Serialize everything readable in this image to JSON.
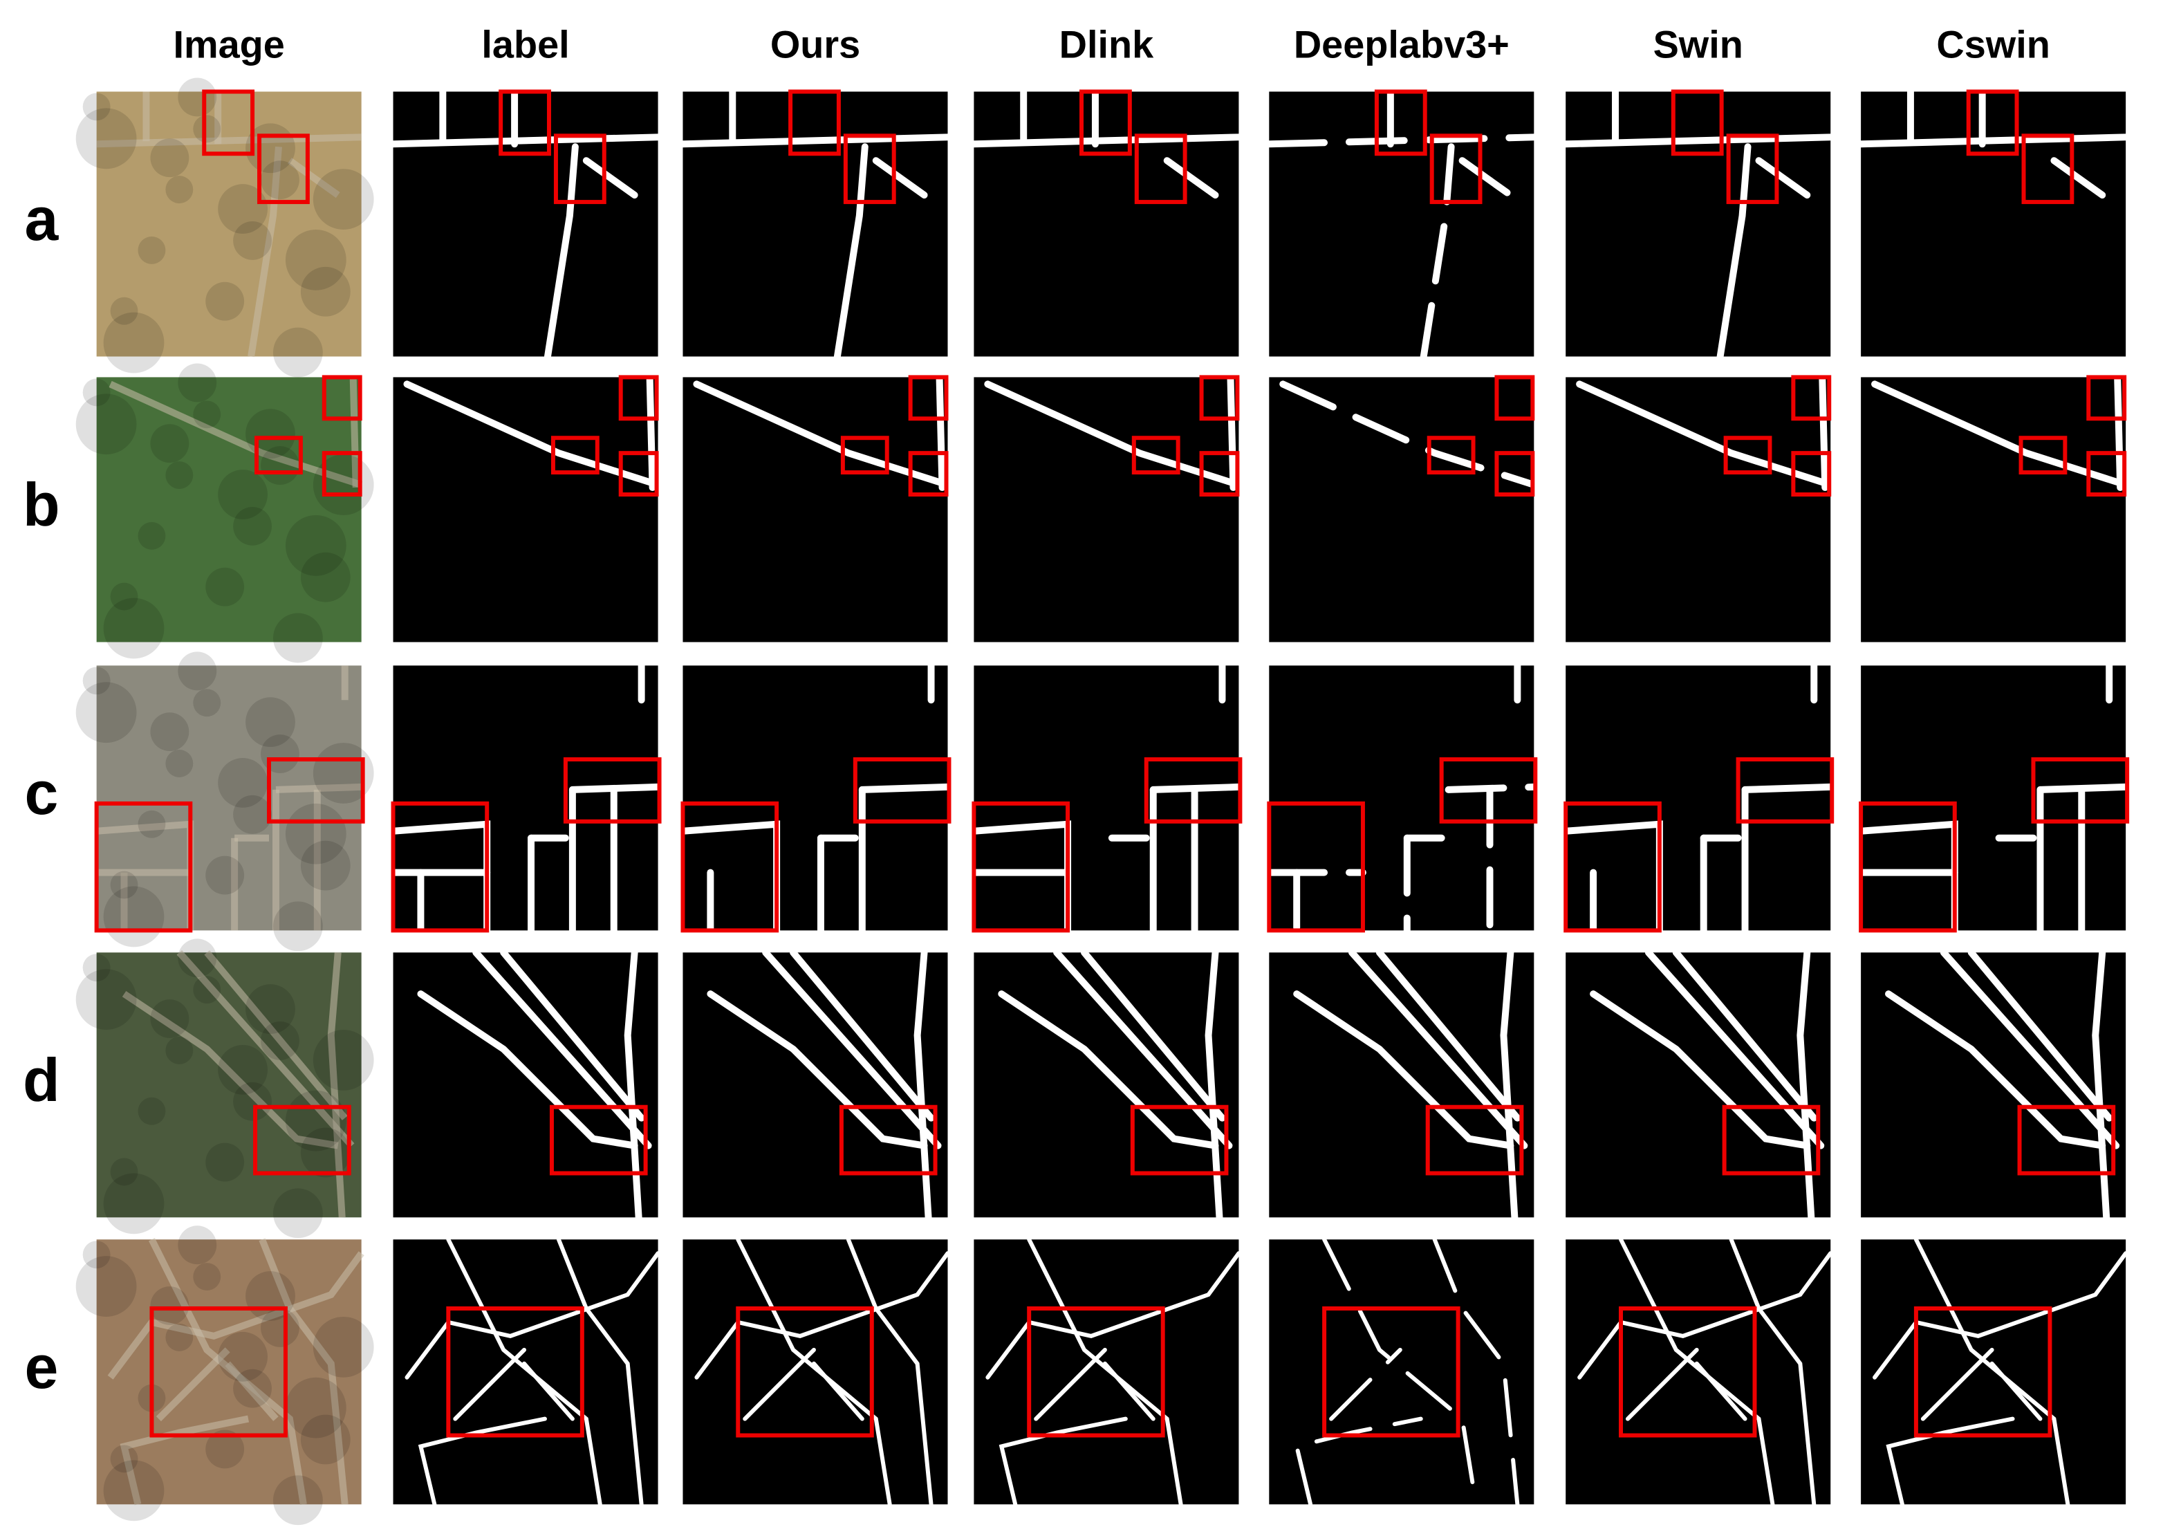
{
  "columns": [
    "Image",
    "label",
    "Ours",
    "Dlink",
    "Deeplabv3+",
    "Swin",
    "Cswin"
  ],
  "rows": [
    "a",
    "b",
    "c",
    "d",
    "e"
  ]
}
